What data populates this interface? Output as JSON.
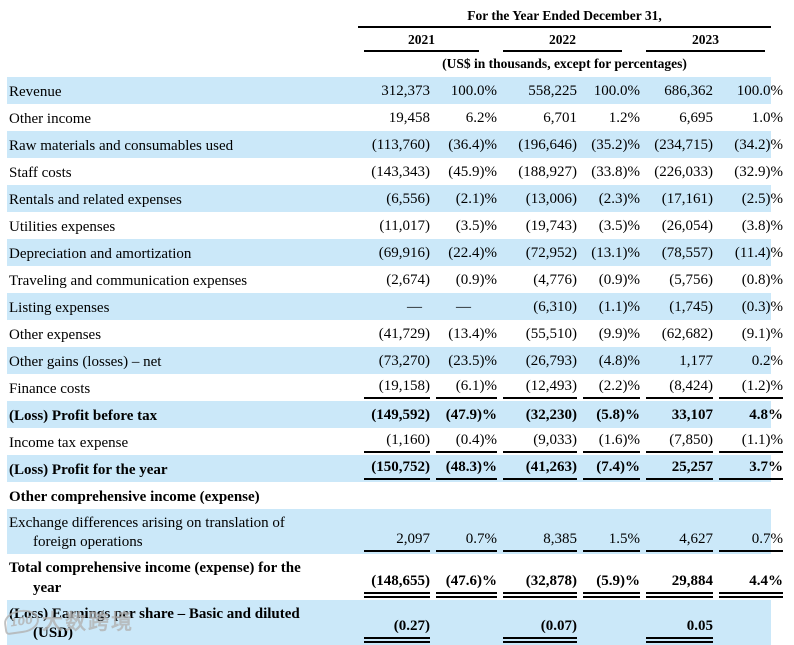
{
  "header": {
    "title": "For the Year Ended December 31,",
    "years": [
      "2021",
      "2022",
      "2023"
    ],
    "units_note": "(US$ in thousands, except for percentages)",
    "shade_color": "#cbe8f9"
  },
  "table": {
    "column_names": [
      "2021-amount",
      "2021-percent",
      "2022-amount",
      "2022-percent",
      "2023-amount",
      "2023-percent"
    ],
    "rows": [
      {
        "label_lines": [
          "Revenue"
        ],
        "values": [
          "312,373",
          "100.0%",
          "558,225",
          "100.0%",
          "686,362",
          "100.0%"
        ],
        "shaded": true,
        "bold": false,
        "tall": false,
        "underline": null
      },
      {
        "label_lines": [
          "Other income"
        ],
        "values": [
          "19,458",
          "6.2%",
          "6,701",
          "1.2%",
          "6,695",
          "1.0%"
        ],
        "shaded": false,
        "bold": false,
        "tall": false,
        "underline": null
      },
      {
        "label_lines": [
          "Raw materials and consumables used"
        ],
        "values": [
          "(113,760)",
          "(36.4)%",
          "(196,646)",
          "(35.2)%",
          "(234,715)",
          "(34.2)%"
        ],
        "shaded": true,
        "bold": false,
        "tall": false,
        "underline": null
      },
      {
        "label_lines": [
          "Staff costs"
        ],
        "values": [
          "(143,343)",
          "(45.9)%",
          "(188,927)",
          "(33.8)%",
          "(226,033)",
          "(32.9)%"
        ],
        "shaded": false,
        "bold": false,
        "tall": false,
        "underline": null
      },
      {
        "label_lines": [
          "Rentals and related expenses"
        ],
        "values": [
          "(6,556)",
          "(2.1)%",
          "(13,006)",
          "(2.3)%",
          "(17,161)",
          "(2.5)%"
        ],
        "shaded": true,
        "bold": false,
        "tall": false,
        "underline": null
      },
      {
        "label_lines": [
          "Utilities expenses"
        ],
        "values": [
          "(11,017)",
          "(3.5)%",
          "(19,743)",
          "(3.5)%",
          "(26,054)",
          "(3.8)%"
        ],
        "shaded": false,
        "bold": false,
        "tall": false,
        "underline": null
      },
      {
        "label_lines": [
          "Depreciation and amortization"
        ],
        "values": [
          "(69,916)",
          "(22.4)%",
          "(72,952)",
          "(13.1)%",
          "(78,557)",
          "(11.4)%"
        ],
        "shaded": true,
        "bold": false,
        "tall": false,
        "underline": null
      },
      {
        "label_lines": [
          "Traveling and communication expenses"
        ],
        "values": [
          "(2,674)",
          "(0.9)%",
          "(4,776)",
          "(0.9)%",
          "(5,756)",
          "(0.8)%"
        ],
        "shaded": false,
        "bold": false,
        "tall": false,
        "underline": null
      },
      {
        "label_lines": [
          "Listing expenses"
        ],
        "values": [
          "—",
          "—",
          "(6,310)",
          "(1.1)%",
          "(1,745)",
          "(0.3)%"
        ],
        "shaded": true,
        "bold": false,
        "tall": false,
        "underline": null
      },
      {
        "label_lines": [
          "Other expenses"
        ],
        "values": [
          "(41,729)",
          "(13.4)%",
          "(55,510)",
          "(9.9)%",
          "(62,682)",
          "(9.1)%"
        ],
        "shaded": false,
        "bold": false,
        "tall": false,
        "underline": null
      },
      {
        "label_lines": [
          "Other gains (losses) – net"
        ],
        "values": [
          "(73,270)",
          "(23.5)%",
          "(26,793)",
          "(4.8)%",
          "1,177",
          "0.2%"
        ],
        "shaded": true,
        "bold": false,
        "tall": false,
        "underline": null
      },
      {
        "label_lines": [
          "Finance costs"
        ],
        "values": [
          "(19,158)",
          "(6.1)%",
          "(12,493)",
          "(2.2)%",
          "(8,424)",
          "(1.2)%"
        ],
        "shaded": false,
        "bold": false,
        "tall": false,
        "underline": "single"
      },
      {
        "label_lines": [
          "(Loss) Profit before tax"
        ],
        "values": [
          "(149,592)",
          "(47.9)%",
          "(32,230)",
          "(5.8)%",
          "33,107",
          "4.8%"
        ],
        "shaded": true,
        "bold": true,
        "tall": false,
        "underline": null
      },
      {
        "label_lines": [
          "Income tax expense"
        ],
        "values": [
          "(1,160)",
          "(0.4)%",
          "(9,033)",
          "(1.6)%",
          "(7,850)",
          "(1.1)%"
        ],
        "shaded": false,
        "bold": false,
        "tall": false,
        "underline": "single"
      },
      {
        "label_lines": [
          "(Loss) Profit for the year"
        ],
        "values": [
          "(150,752)",
          "(48.3)%",
          "(41,263)",
          "(7.4)%",
          "25,257",
          "3.7%"
        ],
        "shaded": true,
        "bold": true,
        "tall": false,
        "underline": "single"
      },
      {
        "label_lines": [
          "Other comprehensive income (expense)"
        ],
        "values": [
          "",
          "",
          "",
          "",
          "",
          ""
        ],
        "shaded": false,
        "bold": true,
        "tall": false,
        "underline": null
      },
      {
        "label_lines": [
          "Exchange differences arising on translation of",
          "foreign operations"
        ],
        "values": [
          "2,097",
          "0.7%",
          "8,385",
          "1.5%",
          "4,627",
          "0.7%"
        ],
        "shaded": true,
        "bold": false,
        "tall": true,
        "underline": "single"
      },
      {
        "label_lines": [
          "Total comprehensive income (expense) for the",
          "year"
        ],
        "values": [
          "(148,655)",
          "(47.6)%",
          "(32,878)",
          "(5.9)%",
          "29,884",
          "4.4%"
        ],
        "shaded": false,
        "bold": true,
        "tall": true,
        "underline": "double"
      },
      {
        "label_lines": [
          "(Loss) Earnings per share – Basic and diluted",
          "(USD)"
        ],
        "values": [
          "(0.27)",
          "",
          "(0.07)",
          "",
          "0.05",
          ""
        ],
        "shaded": true,
        "bold": true,
        "tall": true,
        "underline": "double"
      }
    ]
  },
  "watermark": {
    "logo": "100",
    "text": "大数跨境"
  }
}
